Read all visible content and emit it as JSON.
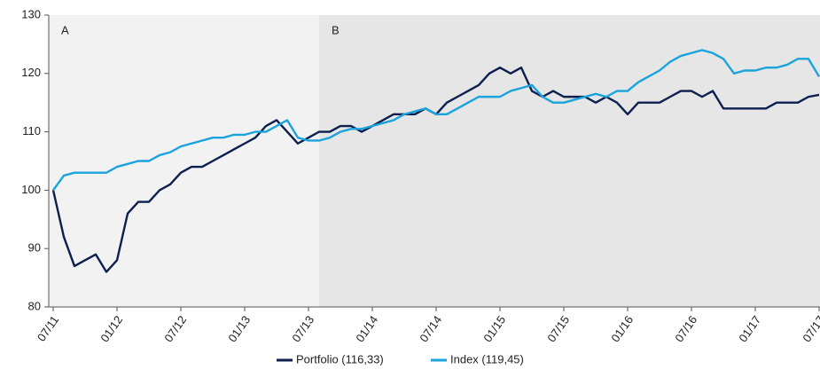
{
  "chart_data": {
    "type": "line",
    "x": [
      "07/11",
      "08/11",
      "09/11",
      "10/11",
      "11/11",
      "12/11",
      "01/12",
      "02/12",
      "03/12",
      "04/12",
      "05/12",
      "06/12",
      "07/12",
      "08/12",
      "09/12",
      "10/12",
      "11/12",
      "12/12",
      "01/13",
      "02/13",
      "03/13",
      "04/13",
      "05/13",
      "06/13",
      "07/13",
      "08/13",
      "09/13",
      "10/13",
      "11/13",
      "12/13",
      "01/14",
      "02/14",
      "03/14",
      "04/14",
      "05/14",
      "06/14",
      "07/14",
      "08/14",
      "09/14",
      "10/14",
      "11/14",
      "12/14",
      "01/15",
      "02/15",
      "03/15",
      "04/15",
      "05/15",
      "06/15",
      "07/15",
      "08/15",
      "09/15",
      "10/15",
      "11/15",
      "12/15",
      "01/16",
      "02/16",
      "03/16",
      "04/16",
      "05/16",
      "06/16",
      "07/16",
      "08/16",
      "09/16",
      "10/16",
      "11/16",
      "12/16",
      "01/17",
      "02/17",
      "03/17",
      "04/17",
      "05/17",
      "06/17",
      "07/17"
    ],
    "xticks": [
      "07/11",
      "01/12",
      "07/12",
      "01/13",
      "07/13",
      "01/14",
      "07/14",
      "01/15",
      "07/15",
      "01/16",
      "07/16",
      "01/17",
      "07/17"
    ],
    "series": [
      {
        "name": "Portfolio (116,33)",
        "color": "#0d1f4e",
        "values": [
          100,
          92,
          87,
          88,
          89,
          86,
          88,
          96,
          98,
          98,
          100,
          101,
          103,
          104,
          104,
          105,
          106,
          107,
          108,
          109,
          111,
          112,
          110,
          108,
          109,
          110,
          110,
          111,
          111,
          110,
          111,
          112,
          113,
          113,
          113,
          114,
          113,
          115,
          116,
          117,
          118,
          120,
          121,
          120,
          121,
          117,
          116,
          117,
          116,
          116,
          116,
          115,
          116,
          115,
          113,
          115,
          115,
          115,
          116,
          117,
          117,
          116,
          117,
          114,
          114,
          114,
          114,
          114,
          115,
          115,
          115,
          116,
          116.33
        ]
      },
      {
        "name": "Index (119,45)",
        "color": "#1aa3dc",
        "values": [
          100,
          102.5,
          103,
          103,
          103,
          103,
          104,
          104.5,
          105,
          105,
          106,
          106.5,
          107.5,
          108,
          108.5,
          109,
          109,
          109.5,
          109.5,
          110,
          110,
          111,
          112,
          109,
          108.5,
          108.5,
          109,
          110,
          110.5,
          110.5,
          111,
          111.5,
          112,
          113,
          113.5,
          114,
          113,
          113,
          114,
          115,
          116,
          116,
          116,
          117,
          117.5,
          118,
          116,
          115,
          115,
          115.5,
          116,
          116.5,
          116,
          117,
          117,
          118.5,
          119.5,
          120.5,
          122,
          123,
          123.5,
          124,
          123.5,
          122.5,
          120,
          120.5,
          120.5,
          121,
          121,
          121.5,
          122.5,
          122.5,
          119.45
        ]
      }
    ],
    "ylim": [
      80,
      130
    ],
    "yticks": [
      80,
      90,
      100,
      110,
      120,
      130
    ],
    "regions": [
      {
        "label": "A",
        "color": "#f2f2f2"
      },
      {
        "label": "B",
        "color": "#e6e6e6"
      }
    ],
    "region_split": "08/13"
  }
}
